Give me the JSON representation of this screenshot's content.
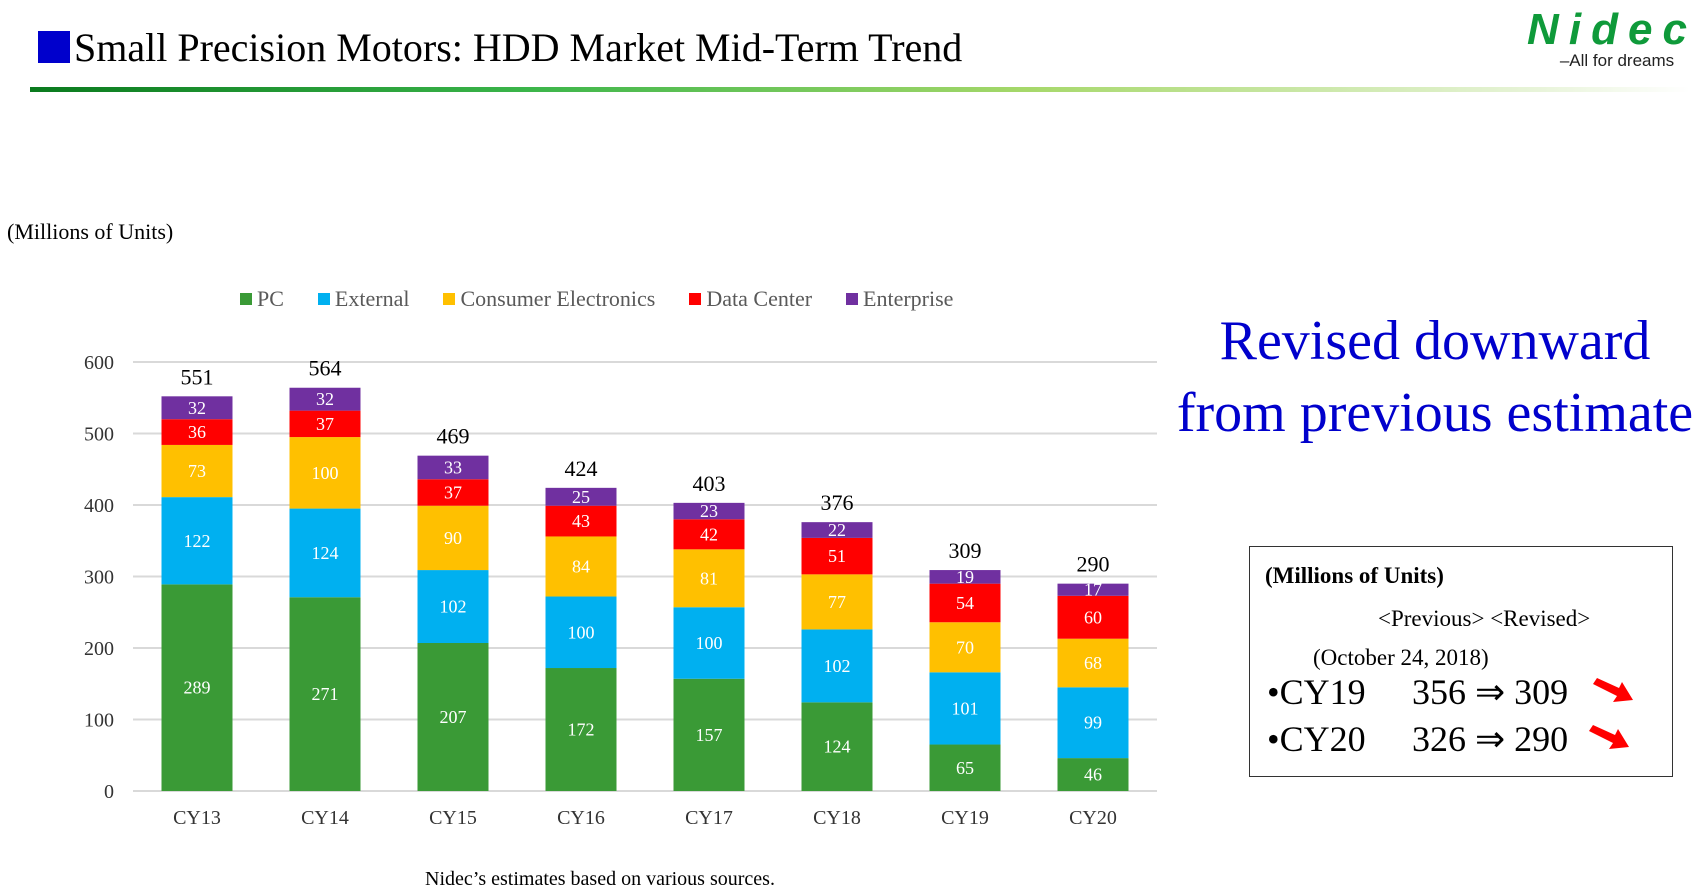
{
  "header": {
    "title": "Small Precision Motors: HDD Market Mid-Term Trend",
    "logo_text": "Nidec",
    "logo_tagline": "All for dreams",
    "title_square_color": "#0000cc"
  },
  "unit_label": "(Millions of Units)",
  "chart_data": {
    "type": "bar",
    "stacked": true,
    "categories": [
      "CY13",
      "CY14",
      "CY15",
      "CY16",
      "CY17",
      "CY18",
      "CY19",
      "CY20"
    ],
    "series": [
      {
        "name": "PC",
        "color": "#3a9a36",
        "values": [
          289,
          271,
          207,
          172,
          157,
          124,
          65,
          46
        ]
      },
      {
        "name": "External",
        "color": "#00b0f0",
        "values": [
          122,
          124,
          102,
          100,
          100,
          102,
          101,
          99
        ]
      },
      {
        "name": "Consumer Electronics",
        "color": "#ffc000",
        "values": [
          73,
          100,
          90,
          84,
          81,
          77,
          70,
          68
        ]
      },
      {
        "name": "Data Center",
        "color": "#ff0000",
        "values": [
          36,
          37,
          37,
          43,
          42,
          51,
          54,
          60
        ]
      },
      {
        "name": "Enterprise",
        "color": "#7030a0",
        "values": [
          32,
          32,
          33,
          25,
          23,
          22,
          19,
          17
        ]
      }
    ],
    "totals": [
      551,
      564,
      469,
      424,
      403,
      376,
      309,
      290
    ],
    "yticks": [
      0,
      100,
      200,
      300,
      400,
      500,
      600
    ],
    "ylim": [
      0,
      600
    ],
    "grid": true,
    "legend": "top"
  },
  "callout": {
    "line1": "Revised downward",
    "line2": "from previous estimate"
  },
  "box": {
    "unit": "(Millions of Units)",
    "header": "<Previous> <Revised>",
    "date": "(October 24, 2018)",
    "rows": [
      {
        "label": "•CY19",
        "previous": "356",
        "arrow": "⇒",
        "revised": "309"
      },
      {
        "label": "•CY20",
        "previous": "326",
        "arrow": "⇒",
        "revised": "290"
      }
    ]
  },
  "footnote": "Nidec’s estimates based on various sources."
}
